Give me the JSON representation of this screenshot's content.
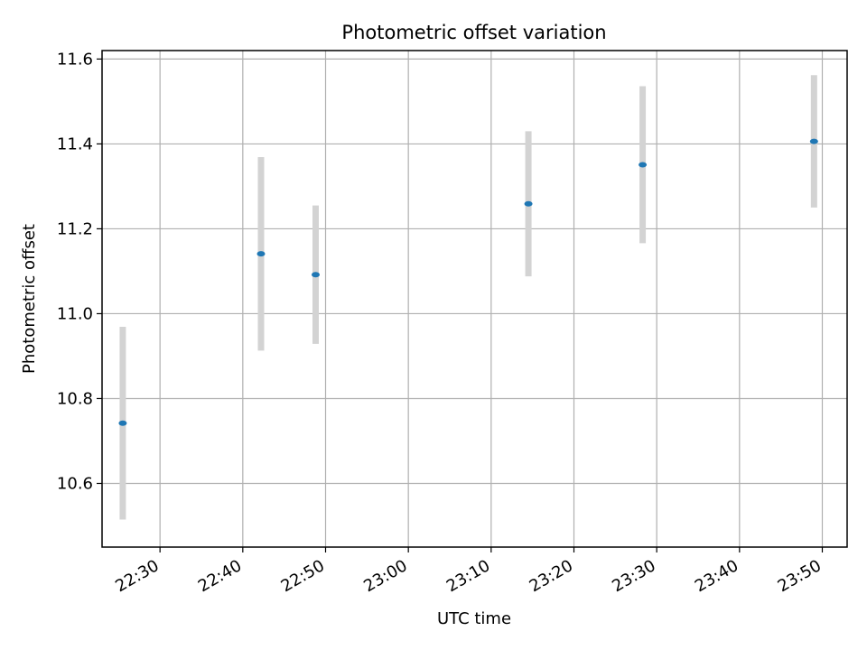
{
  "chart_data": {
    "type": "scatter",
    "title": "Photometric offset variation",
    "xlabel": "UTC time",
    "ylabel": "Photometric offset",
    "x_unit": "time (HH:MM, UTC)",
    "xlim": [
      "22:23",
      "23:53"
    ],
    "ylim": [
      10.45,
      11.62
    ],
    "x_ticks": [
      "22:30",
      "22:40",
      "22:50",
      "23:00",
      "23:10",
      "23:20",
      "23:30",
      "23:40",
      "23:50"
    ],
    "y_ticks": [
      10.6,
      10.8,
      11.0,
      11.2,
      11.4,
      11.6
    ],
    "grid": true,
    "colors": {
      "point": "#1f77b4",
      "errorbar": "#d3d3d3",
      "grid": "#b0b0b0"
    },
    "points": [
      {
        "x": "22:25.5",
        "y": 10.742,
        "yerr": 0.227
      },
      {
        "x": "22:42.2",
        "y": 11.141,
        "yerr": 0.228
      },
      {
        "x": "22:48.8",
        "y": 11.092,
        "yerr": 0.163
      },
      {
        "x": "23:14.5",
        "y": 11.259,
        "yerr": 0.171
      },
      {
        "x": "23:28.3",
        "y": 11.351,
        "yerr": 0.185
      },
      {
        "x": "23:49.0",
        "y": 11.406,
        "yerr": 0.156
      }
    ]
  }
}
